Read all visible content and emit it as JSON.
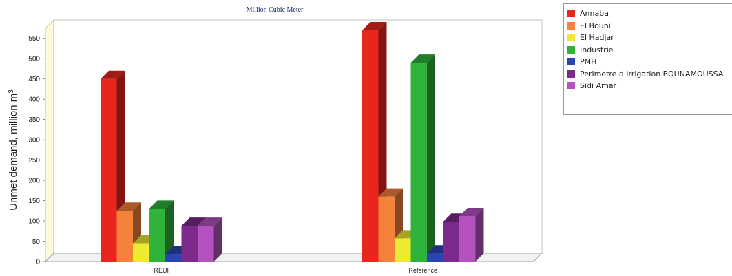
{
  "chart_data": {
    "type": "bar",
    "title": "Million Cubic Meter",
    "ylabel": "Unmet demand, million m",
    "ylabel_sup": "3",
    "ylim": [
      0,
      575
    ],
    "yticks": [
      0,
      50,
      100,
      150,
      200,
      250,
      300,
      350,
      400,
      450,
      500,
      550
    ],
    "categories": [
      "REUI",
      "Reference"
    ],
    "series": [
      {
        "name": "Annaba",
        "color": "#e8261e",
        "values": [
          450,
          570
        ]
      },
      {
        "name": "El Bouni",
        "color": "#f4823a",
        "values": [
          125,
          160
        ]
      },
      {
        "name": "El Hadjar",
        "color": "#eeea32",
        "values": [
          45,
          57
        ]
      },
      {
        "name": "Industrie",
        "color": "#2fb33a",
        "values": [
          130,
          490
        ]
      },
      {
        "name": "PMH",
        "color": "#2a44b4",
        "values": [
          18,
          20
        ]
      },
      {
        "name": "Perimetre d irrigation BOUNAMOUSSA",
        "color": "#7c2a8c",
        "values": [
          88,
          98
        ]
      },
      {
        "name": "Sidi Amar",
        "color": "#b453c0",
        "values": [
          88,
          112
        ]
      }
    ],
    "legend_position": "top-right",
    "style": "3d-bar",
    "grid": false
  }
}
